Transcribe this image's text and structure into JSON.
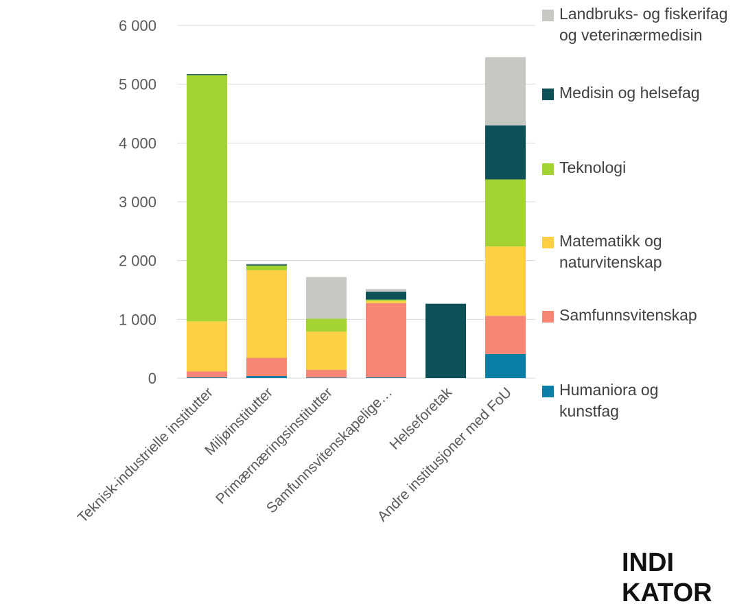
{
  "chart_data": {
    "type": "bar",
    "stacked": true,
    "categories": [
      "Teknisk-industrielle institutter",
      "Miljøinstitutter",
      "Primærnæringsinstitutter",
      "Samfunnsvitenskapelige…",
      "Helseforetak",
      "Andre institusjoner med FoU"
    ],
    "y_ticks": [
      "0",
      "1 000",
      "2 000",
      "3 000",
      "4 000",
      "5 000",
      "6 000"
    ],
    "ylim": [
      0,
      6000
    ],
    "grid": true,
    "legend_position": "right",
    "series": [
      {
        "name": "Humaniora og kunstfag",
        "color": "#0a7ea4",
        "values": [
          15,
          35,
          10,
          15,
          0,
          410
        ]
      },
      {
        "name": "Samfunnsvitenskap",
        "color": "#f88675",
        "values": [
          100,
          310,
          130,
          1260,
          0,
          650
        ]
      },
      {
        "name": "Matematikk og naturvitenskap",
        "color": "#fdd043",
        "values": [
          850,
          1490,
          650,
          35,
          0,
          1180
        ]
      },
      {
        "name": "Teknologi",
        "color": "#a3d332",
        "values": [
          4190,
          80,
          220,
          25,
          0,
          1140
        ]
      },
      {
        "name": "Medisin og helsefag",
        "color": "#0e5058",
        "values": [
          15,
          20,
          0,
          135,
          1265,
          920
        ]
      },
      {
        "name": "Landbruks- og fiskerifag og veterinærmedisin",
        "color": "#c7c8c4",
        "values": [
          0,
          10,
          710,
          45,
          0,
          1160
        ]
      }
    ]
  },
  "brand": {
    "line1": "INDI",
    "line2": "KATOR"
  }
}
